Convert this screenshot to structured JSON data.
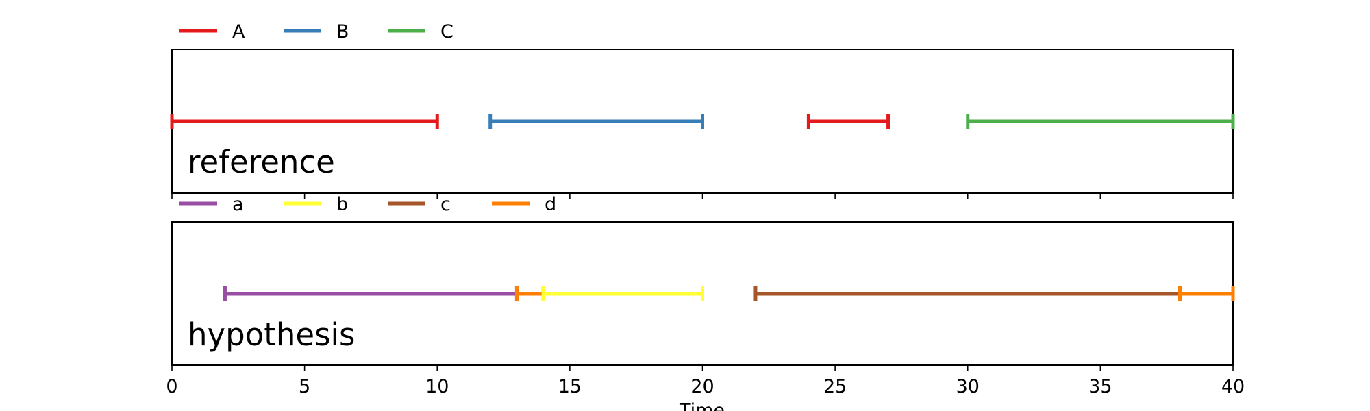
{
  "chart_data": {
    "type": "timeline",
    "xlabel": "Time",
    "xlim": [
      0,
      40
    ],
    "xticks": [
      0,
      5,
      10,
      15,
      20,
      25,
      30,
      35,
      40
    ],
    "panels": [
      {
        "label": "reference",
        "legend": [
          {
            "name": "A",
            "color": "#e41a1c"
          },
          {
            "name": "B",
            "color": "#377eb8"
          },
          {
            "name": "C",
            "color": "#4daf4a"
          }
        ],
        "segments": [
          {
            "name": "A",
            "start": 0,
            "end": 10
          },
          {
            "name": "B",
            "start": 12,
            "end": 20
          },
          {
            "name": "A",
            "start": 24,
            "end": 27
          },
          {
            "name": "C",
            "start": 30,
            "end": 40
          }
        ]
      },
      {
        "label": "hypothesis",
        "legend": [
          {
            "name": "a",
            "color": "#984ea3"
          },
          {
            "name": "b",
            "color": "#ffff33"
          },
          {
            "name": "c",
            "color": "#a65628"
          },
          {
            "name": "d",
            "color": "#ff7f00"
          }
        ],
        "segments": [
          {
            "name": "a",
            "start": 2,
            "end": 13
          },
          {
            "name": "d",
            "start": 13,
            "end": 14
          },
          {
            "name": "b",
            "start": 14,
            "end": 20
          },
          {
            "name": "c",
            "start": 22,
            "end": 38
          },
          {
            "name": "d",
            "start": 38,
            "end": 40
          }
        ]
      }
    ]
  }
}
